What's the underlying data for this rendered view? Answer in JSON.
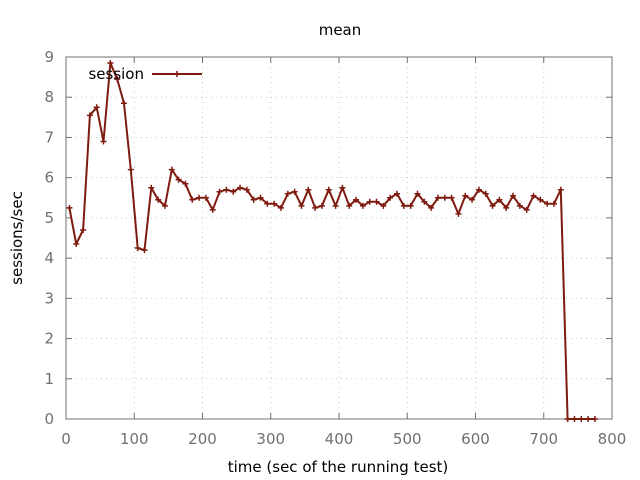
{
  "chart_data": {
    "type": "line",
    "title": "mean",
    "xlabel": "time (sec of the running test)",
    "ylabel": "sessions/sec",
    "xlim": [
      0,
      800
    ],
    "ylim": [
      0,
      9
    ],
    "xticks": [
      0,
      100,
      200,
      300,
      400,
      500,
      600,
      700,
      800
    ],
    "yticks": [
      0,
      1,
      2,
      3,
      4,
      5,
      6,
      7,
      8,
      9
    ],
    "grid": true,
    "legend_position": "top-left",
    "series": [
      {
        "name": "session",
        "color": "#7f1a0f",
        "marker": "plus",
        "x": [
          5,
          15,
          25,
          35,
          45,
          55,
          65,
          75,
          85,
          95,
          105,
          115,
          125,
          135,
          145,
          155,
          165,
          175,
          185,
          195,
          205,
          215,
          225,
          235,
          245,
          255,
          265,
          275,
          285,
          295,
          305,
          315,
          325,
          335,
          345,
          355,
          365,
          375,
          385,
          395,
          405,
          415,
          425,
          435,
          445,
          455,
          465,
          475,
          485,
          495,
          505,
          515,
          525,
          535,
          545,
          555,
          565,
          575,
          585,
          595,
          605,
          615,
          625,
          635,
          645,
          655,
          665,
          675,
          685,
          695,
          705,
          715,
          725,
          735,
          745,
          755,
          765,
          775
        ],
        "y": [
          5.25,
          4.35,
          4.7,
          7.55,
          7.75,
          6.9,
          8.85,
          8.45,
          7.85,
          6.2,
          4.25,
          4.2,
          5.75,
          5.45,
          5.3,
          6.2,
          5.95,
          5.85,
          5.45,
          5.5,
          5.5,
          5.2,
          5.65,
          5.7,
          5.65,
          5.75,
          5.7,
          5.45,
          5.5,
          5.35,
          5.35,
          5.25,
          5.6,
          5.65,
          5.3,
          5.7,
          5.25,
          5.3,
          5.7,
          5.3,
          5.75,
          5.3,
          5.45,
          5.3,
          5.4,
          5.4,
          5.3,
          5.5,
          5.6,
          5.3,
          5.3,
          5.6,
          5.4,
          5.25,
          5.5,
          5.5,
          5.5,
          5.1,
          5.55,
          5.45,
          5.7,
          5.6,
          5.3,
          5.45,
          5.25,
          5.55,
          5.3,
          5.2,
          5.55,
          5.45,
          5.35,
          5.35,
          5.7,
          0.0,
          0.0,
          0.0,
          0.0,
          0.0
        ]
      }
    ]
  }
}
